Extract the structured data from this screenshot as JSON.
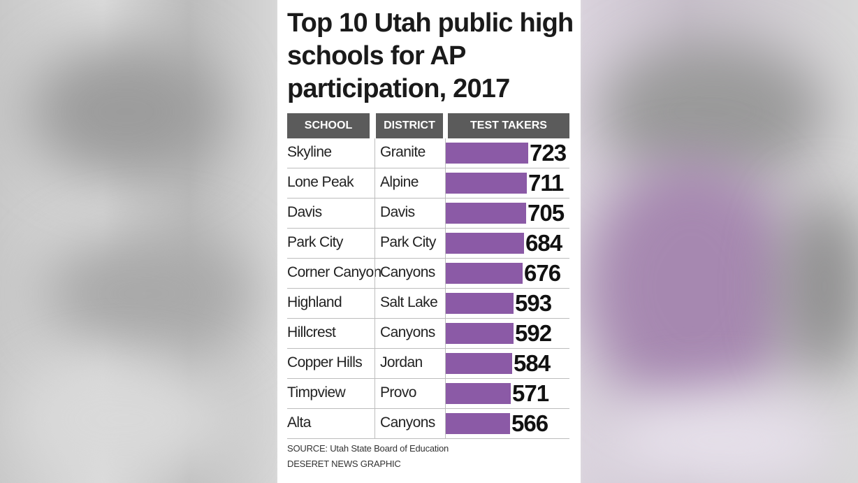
{
  "chart_data": {
    "type": "bar",
    "orientation": "horizontal",
    "title": "Top 10 Utah public high schools for AP participation, 2017",
    "columns": [
      "SCHOOL",
      "DISTRICT",
      "TEST TAKERS"
    ],
    "categories": [
      "Skyline",
      "Lone Peak",
      "Davis",
      "Park City",
      "Corner Canyon",
      "Highland",
      "Hillcrest",
      "Copper Hills",
      "Timpview",
      "Alta"
    ],
    "districts": [
      "Granite",
      "Alpine",
      "Davis",
      "Park City",
      "Canyons",
      "Salt Lake",
      "Canyons",
      "Jordan",
      "Provo",
      "Canyons"
    ],
    "values": [
      723,
      711,
      705,
      684,
      676,
      593,
      592,
      584,
      571,
      566
    ],
    "bar_color": "#8b5aa6",
    "header_color": "#5b5b5b",
    "source": "SOURCE: Utah State Board of Education",
    "credit": "DESERET NEWS GRAPHIC"
  }
}
